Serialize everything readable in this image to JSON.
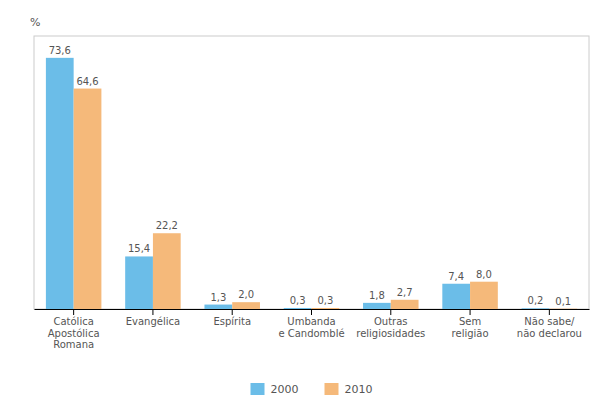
{
  "chart_data": {
    "type": "bar",
    "ylabel": "%",
    "categories": [
      "Católica\nApostólica\nRomana",
      "Evangélica",
      "Espírita",
      "Umbanda\ne Candomblé",
      "Outras\nreligiosidades",
      "Sem\nreligião",
      "Não sabe/\nnão declarou"
    ],
    "series": [
      {
        "name": "2000",
        "color": "#6BBDE8",
        "values": [
          73.6,
          15.4,
          1.3,
          0.3,
          1.8,
          7.4,
          0.2
        ],
        "value_labels": [
          "73,6",
          "15,4",
          "1,3",
          "0,3",
          "1,8",
          "7,4",
          "0,2"
        ]
      },
      {
        "name": "2010",
        "color": "#F5B97A",
        "values": [
          64.6,
          22.2,
          2.0,
          0.3,
          2.7,
          8.0,
          0.1
        ],
        "value_labels": [
          "64,6",
          "22,2",
          "2,0",
          "0,3",
          "2,7",
          "8,0",
          "0,1"
        ]
      }
    ],
    "ylim": [
      0,
      80
    ],
    "grid": false,
    "legend": "bottom",
    "data_labels": true,
    "tick_labels": "x"
  }
}
